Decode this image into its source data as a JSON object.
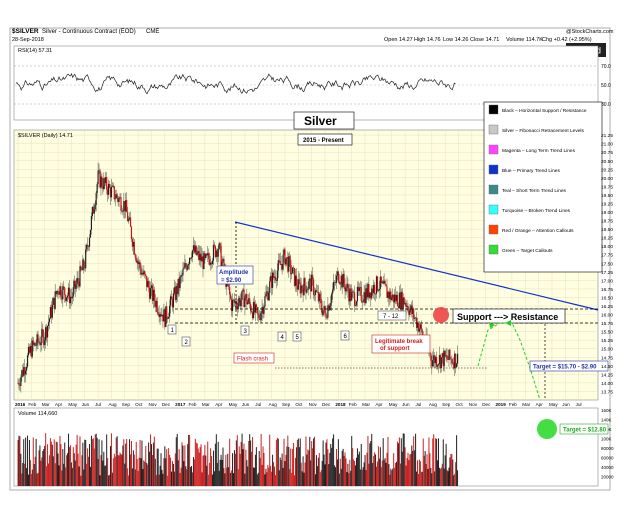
{
  "header": {
    "symbol": "$SILVER",
    "desc": "Silver - Continuous Contract (EOD)",
    "exchange": "CME",
    "date": "28-Sep-2018",
    "open": "Open 14.27",
    "high": "High 14.76",
    "low": "Low 14.26",
    "close": "Close 14.71",
    "volume": "Volume 114.7K",
    "chg": "Chg +0.42 (+2.95%)",
    "source": "@StockCharts.com",
    "brand": "iGold"
  },
  "rsi": {
    "label": "RSI(14) 57.31",
    "ticks": [
      "70.0",
      "50.0",
      "30.0"
    ]
  },
  "price_label": "$SILVER (Daily) 14.71",
  "title_box": {
    "title": "Silver",
    "subtitle": "2015 - Present"
  },
  "legend": [
    {
      "color": "#000000",
      "text": "Black – Horizontal Support / Resistance"
    },
    {
      "color": "#c8c8c8",
      "text": "Silver – Fibonacci Retracement Levels"
    },
    {
      "color": "#ff44ff",
      "text": "Magenta – Long Term Trend Lines"
    },
    {
      "color": "#1133cc",
      "text": "Blue – Primary Trend Lines"
    },
    {
      "color": "#3a8a8a",
      "text": "Teal – Short Term Trend Lines"
    },
    {
      "color": "#33ffff",
      "text": "Turquoise – Broken Trend Lines"
    },
    {
      "color": "#ff4400",
      "text": "Red / Orange – Attention Callouts"
    },
    {
      "color": "#33dd33",
      "text": "Green – Target Callouts"
    }
  ],
  "annotations": {
    "amplitude": "Amplitude\n= $2.90",
    "flash_crash": "Flash crash",
    "legit": "Legitimate break\nof support",
    "support_resistance": "Support ---> Resistance",
    "target1": "Target = $15.70 - $2.90",
    "target2": "Target = $12.80",
    "range_label": "7 - 12",
    "points": [
      "1",
      "2",
      "3",
      "4",
      "5",
      "6"
    ]
  },
  "volume_label": "Volume 114,660",
  "chart_data": {
    "type": "line",
    "x": [
      "2016-01",
      "2016-02",
      "2016-03",
      "2016-04",
      "2016-05",
      "2016-06",
      "2016-07",
      "2016-08",
      "2016-09",
      "2016-10",
      "2016-11",
      "2016-12",
      "2017-01",
      "2017-02",
      "2017-03",
      "2017-04",
      "2017-05",
      "2017-06",
      "2017-07",
      "2017-08",
      "2017-09",
      "2017-10",
      "2017-11",
      "2017-12",
      "2018-01",
      "2018-02",
      "2018-03",
      "2018-04",
      "2018-05",
      "2018-06",
      "2018-07",
      "2018-08",
      "2018-09"
    ],
    "series": [
      {
        "values": [
          14.0,
          15.0,
          15.4,
          16.8,
          16.5,
          17.5,
          20.0,
          19.6,
          19.2,
          17.5,
          16.6,
          15.9,
          16.8,
          17.9,
          17.5,
          18.0,
          16.3,
          16.5,
          15.9,
          17.0,
          17.7,
          16.8,
          16.9,
          16.0,
          17.2,
          16.5,
          16.6,
          16.9,
          16.5,
          16.4,
          15.7,
          14.7,
          14.7
        ]
      }
    ],
    "x_tick_labels": [
      "2016",
      "Feb",
      "Mar",
      "Apr",
      "May",
      "Jun",
      "Jul",
      "Aug",
      "Sep",
      "Oct",
      "Nov",
      "Dec",
      "2017",
      "Feb",
      "Mar",
      "Apr",
      "May",
      "Jun",
      "Jul",
      "Aug",
      "Sep",
      "Oct",
      "Nov",
      "Dec",
      "2018",
      "Feb",
      "Mar",
      "Apr",
      "May",
      "Jun",
      "Jul",
      "Aug",
      "Sep",
      "Oct",
      "Nov",
      "Dec",
      "2019",
      "Feb",
      "Mar",
      "Apr",
      "May",
      "Jun",
      "Jul"
    ],
    "y_ticks": [
      13.5,
      13.75,
      14.0,
      14.25,
      14.5,
      14.75,
      15.0,
      15.25,
      15.5,
      15.75,
      16.0,
      16.25,
      16.5,
      16.75,
      17.0,
      17.25,
      17.5,
      17.75,
      18.0,
      18.25,
      18.5,
      18.75,
      19.0,
      19.25,
      19.5,
      19.75,
      20.0,
      20.25,
      20.5,
      20.75,
      21.0,
      21.25
    ],
    "ylim": [
      13.5,
      21.4
    ],
    "support": 16.05,
    "resistance_line": 15.7,
    "flash_low": 15.0,
    "volume_ticks": [
      "160K",
      "140K",
      "120K",
      "100K",
      "80000",
      "60000",
      "40000",
      "20000"
    ],
    "grid": true
  }
}
